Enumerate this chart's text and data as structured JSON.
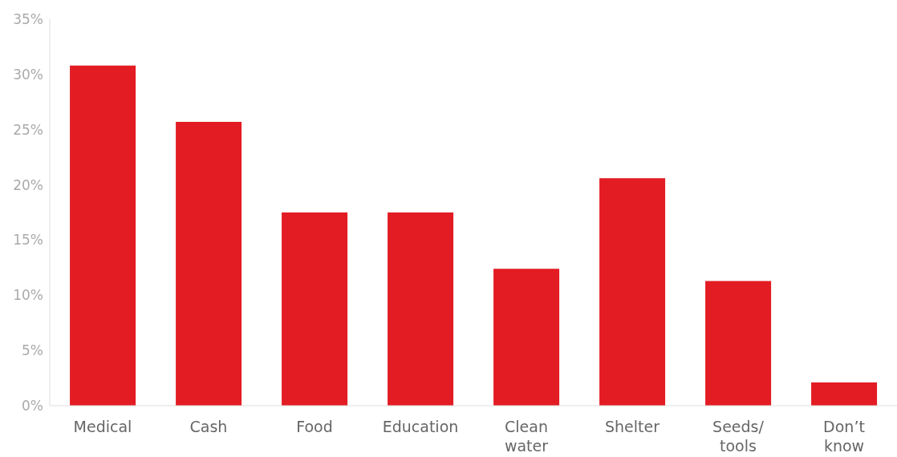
{
  "chart_data": {
    "type": "bar",
    "categories": [
      "Medical",
      "Cash",
      "Food",
      "Education",
      "Clean water",
      "Shelter",
      "Seeds/ tools",
      "Don’t know"
    ],
    "values": [
      30.8,
      25.7,
      17.5,
      17.5,
      12.4,
      20.6,
      11.3,
      2.1
    ],
    "color": "#e31c23",
    "ylim": [
      0,
      35
    ],
    "yticks": [
      {
        "value": 0,
        "label": "0%"
      },
      {
        "value": 5,
        "label": "5%"
      },
      {
        "value": 10,
        "label": "10%"
      },
      {
        "value": 15,
        "label": "15%"
      },
      {
        "value": 20,
        "label": "20%"
      },
      {
        "value": 25,
        "label": "25%"
      },
      {
        "value": 30,
        "label": "30%"
      },
      {
        "value": 35,
        "label": "35%"
      }
    ],
    "grid": false,
    "legend": false
  }
}
